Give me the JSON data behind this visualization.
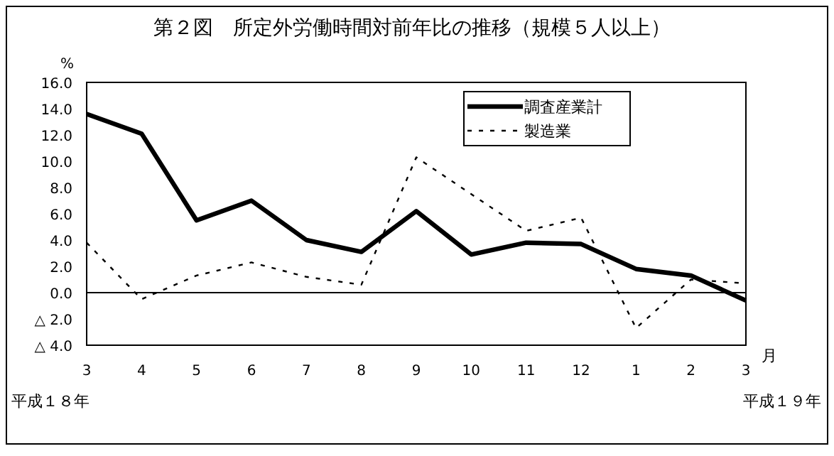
{
  "chart_data": {
    "type": "line",
    "title": "第２図　所定外労働時間対前年比の推移（規模５人以上）",
    "ylabel": "%",
    "xlabel": "月",
    "categories": [
      "3",
      "4",
      "5",
      "6",
      "7",
      "8",
      "9",
      "10",
      "11",
      "12",
      "1",
      "2",
      "3"
    ],
    "series": [
      {
        "name": "調査産業計",
        "color": "#000000",
        "line_style": "solid",
        "values": [
          13.6,
          12.1,
          5.5,
          7.0,
          4.0,
          3.1,
          6.2,
          2.9,
          3.8,
          3.7,
          1.8,
          1.3,
          -0.6
        ]
      },
      {
        "name": "製造業",
        "color": "#000000",
        "line_style": "dashed",
        "values": [
          3.8,
          -0.5,
          1.3,
          2.3,
          1.2,
          0.6,
          10.3,
          7.5,
          4.7,
          5.7,
          -2.7,
          1.0,
          0.7
        ]
      }
    ],
    "ylim": [
      -4,
      16
    ],
    "yticks": [
      {
        "value": -4,
        "label": "△ 4.0"
      },
      {
        "value": -2,
        "label": "△ 2.0"
      },
      {
        "value": 0,
        "label": "0.0"
      },
      {
        "value": 2,
        "label": "2.0"
      },
      {
        "value": 4,
        "label": "4.0"
      },
      {
        "value": 6,
        "label": "6.0"
      },
      {
        "value": 8,
        "label": "8.0"
      },
      {
        "value": 10,
        "label": "10.0"
      },
      {
        "value": 12,
        "label": "12.0"
      },
      {
        "value": 14,
        "label": "14.0"
      },
      {
        "value": 16,
        "label": "16.0"
      }
    ],
    "ref_lines": [
      {
        "axis": "y",
        "value": 0
      }
    ],
    "legend": "top right",
    "grid": false,
    "marker": "none",
    "annotations": [
      "平成１８年",
      "平成１９年"
    ]
  }
}
